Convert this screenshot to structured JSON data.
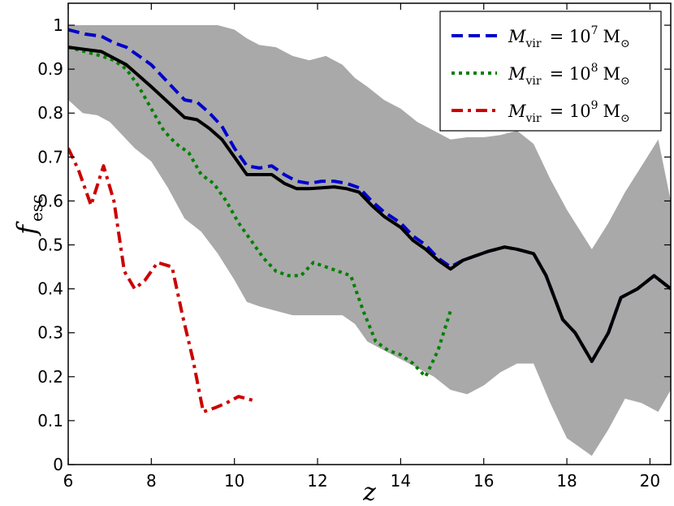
{
  "chart_data": {
    "type": "line",
    "xlabel": "z",
    "ylabel_main": "f",
    "ylabel_sub": "esc",
    "xlim": [
      6,
      20.5
    ],
    "ylim": [
      0,
      1.05
    ],
    "xticks": [
      6,
      8,
      10,
      12,
      14,
      16,
      18,
      20
    ],
    "yticks": [
      0,
      0.1,
      0.2,
      0.3,
      0.4,
      0.5,
      0.6,
      0.7,
      0.8,
      0.9,
      1.0
    ],
    "ytick_labels": [
      "0",
      "0.1",
      "0.2",
      "0.3",
      "0.4",
      "0.5",
      "0.6",
      "0.7",
      "0.8",
      "0.9",
      "1"
    ],
    "legend_position": "top-right",
    "shaded_band": {
      "color": "#a9a9a9",
      "x": [
        6.0,
        6.35,
        6.7,
        7.0,
        7.3,
        7.6,
        8.0,
        8.4,
        8.8,
        9.2,
        9.6,
        10.0,
        10.3,
        10.6,
        11.0,
        11.4,
        11.8,
        12.2,
        12.6,
        12.9,
        13.2,
        13.6,
        14.0,
        14.4,
        14.8,
        15.2,
        15.6,
        16.0,
        16.4,
        16.8,
        17.2,
        17.6,
        18.0,
        18.6,
        19.0,
        19.4,
        19.8,
        20.2,
        20.5
      ],
      "upper": [
        1.0,
        1.0,
        1.0,
        1.0,
        1.0,
        1.0,
        1.0,
        1.0,
        1.0,
        1.0,
        1.0,
        0.99,
        0.97,
        0.955,
        0.95,
        0.93,
        0.92,
        0.93,
        0.91,
        0.88,
        0.86,
        0.83,
        0.81,
        0.78,
        0.76,
        0.74,
        0.745,
        0.745,
        0.75,
        0.76,
        0.73,
        0.65,
        0.58,
        0.49,
        0.55,
        0.62,
        0.68,
        0.74,
        0.6
      ],
      "lower": [
        0.83,
        0.8,
        0.795,
        0.78,
        0.75,
        0.72,
        0.69,
        0.63,
        0.56,
        0.53,
        0.48,
        0.42,
        0.37,
        0.36,
        0.35,
        0.34,
        0.34,
        0.34,
        0.34,
        0.32,
        0.28,
        0.26,
        0.24,
        0.22,
        0.2,
        0.17,
        0.16,
        0.18,
        0.21,
        0.23,
        0.23,
        0.14,
        0.06,
        0.02,
        0.08,
        0.15,
        0.14,
        0.12,
        0.17
      ]
    },
    "series": [
      {
        "name": "M_vir = 10^7 M_sun",
        "color": "#0000cc",
        "style": "dashed",
        "x": [
          6.0,
          6.4,
          6.8,
          7.1,
          7.4,
          7.7,
          8.0,
          8.4,
          8.8,
          9.1,
          9.4,
          9.7,
          10.0,
          10.3,
          10.6,
          10.9,
          11.2,
          11.5,
          11.8,
          12.1,
          12.4,
          12.7,
          13.0,
          13.3,
          13.6,
          14.0,
          14.3,
          14.6,
          14.9,
          15.2,
          15.5,
          15.8,
          16.1,
          16.5,
          16.8,
          17.2,
          17.5,
          17.9,
          18.2,
          18.6,
          19.0,
          19.3,
          19.7,
          20.1,
          20.5
        ],
        "y": [
          0.99,
          0.98,
          0.975,
          0.96,
          0.95,
          0.93,
          0.91,
          0.87,
          0.83,
          0.825,
          0.8,
          0.77,
          0.72,
          0.68,
          0.675,
          0.68,
          0.66,
          0.645,
          0.64,
          0.645,
          0.645,
          0.64,
          0.63,
          0.6,
          0.575,
          0.55,
          0.52,
          0.5,
          0.47,
          0.45,
          0.465,
          0.475,
          0.485,
          0.495,
          0.49,
          0.48,
          0.43,
          0.33,
          0.3,
          0.235,
          0.3,
          0.38,
          0.4,
          0.43,
          0.4
        ]
      },
      {
        "name": "M_vir = 10^8 M_sun",
        "color": "#008000",
        "style": "dotted",
        "x": [
          6.0,
          6.4,
          6.8,
          7.1,
          7.4,
          7.7,
          8.0,
          8.3,
          8.6,
          8.9,
          9.2,
          9.5,
          9.8,
          10.1,
          10.4,
          10.7,
          11.0,
          11.3,
          11.6,
          11.9,
          12.2,
          12.5,
          12.8,
          13.1,
          13.4,
          13.7,
          14.0,
          14.3,
          14.6,
          14.9,
          15.2
        ],
        "y": [
          0.95,
          0.94,
          0.93,
          0.92,
          0.9,
          0.86,
          0.81,
          0.76,
          0.73,
          0.71,
          0.66,
          0.64,
          0.6,
          0.55,
          0.51,
          0.47,
          0.44,
          0.43,
          0.43,
          0.46,
          0.45,
          0.44,
          0.43,
          0.35,
          0.28,
          0.26,
          0.25,
          0.23,
          0.2,
          0.26,
          0.35
        ]
      },
      {
        "name": "M_vir = 10^9 M_sun",
        "color": "#cc0000",
        "style": "dashdot",
        "x": [
          6.0,
          6.25,
          6.55,
          6.85,
          7.1,
          7.35,
          7.6,
          7.85,
          8.15,
          8.5,
          8.75,
          9.0,
          9.25,
          9.55,
          9.8,
          10.1,
          10.5
        ],
        "y": [
          0.72,
          0.67,
          0.59,
          0.68,
          0.6,
          0.44,
          0.4,
          0.42,
          0.46,
          0.45,
          0.34,
          0.24,
          0.12,
          0.13,
          0.14,
          0.155,
          0.145
        ]
      },
      {
        "name": "",
        "color": "#000000",
        "style": "solid",
        "x": [
          6.0,
          6.4,
          6.8,
          7.1,
          7.4,
          7.7,
          8.0,
          8.4,
          8.8,
          9.1,
          9.4,
          9.7,
          10.0,
          10.3,
          10.6,
          10.9,
          11.2,
          11.5,
          11.8,
          12.1,
          12.4,
          12.7,
          13.0,
          13.3,
          13.6,
          14.0,
          14.3,
          14.6,
          14.9,
          15.2,
          15.5,
          15.8,
          16.1,
          16.5,
          16.8,
          17.2,
          17.5,
          17.9,
          18.2,
          18.6,
          19.0,
          19.3,
          19.7,
          20.1,
          20.5
        ],
        "y": [
          0.95,
          0.945,
          0.94,
          0.925,
          0.91,
          0.885,
          0.86,
          0.825,
          0.79,
          0.785,
          0.765,
          0.74,
          0.7,
          0.66,
          0.66,
          0.66,
          0.64,
          0.628,
          0.628,
          0.63,
          0.632,
          0.628,
          0.62,
          0.59,
          0.565,
          0.54,
          0.51,
          0.49,
          0.465,
          0.445,
          0.465,
          0.475,
          0.485,
          0.495,
          0.49,
          0.48,
          0.43,
          0.33,
          0.3,
          0.235,
          0.3,
          0.38,
          0.4,
          0.43,
          0.4
        ]
      }
    ],
    "legend": [
      {
        "series_index": 0,
        "m": "M",
        "sub": "vir",
        "eq": "= 10",
        "exp": "7",
        "unit": "M"
      },
      {
        "series_index": 1,
        "m": "M",
        "sub": "vir",
        "eq": "= 10",
        "exp": "8",
        "unit": "M"
      },
      {
        "series_index": 2,
        "m": "M",
        "sub": "vir",
        "eq": "= 10",
        "exp": "9",
        "unit": "M"
      }
    ]
  }
}
